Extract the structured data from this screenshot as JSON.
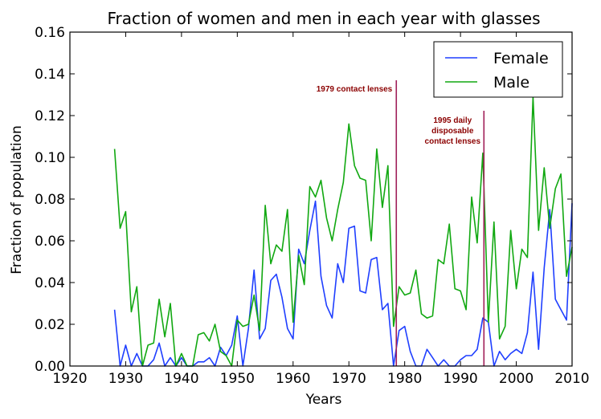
{
  "chart_data": {
    "type": "line",
    "title": "Fraction of women and men in each year with glasses",
    "xlabel": "Years",
    "ylabel": "Fraction of population",
    "xlim": [
      1920,
      2010
    ],
    "ylim": [
      0,
      0.16
    ],
    "x_ticks": [
      "1920",
      "1930",
      "1940",
      "1950",
      "1960",
      "1970",
      "1980",
      "1990",
      "2000",
      "2010"
    ],
    "y_ticks": [
      "0.00",
      "0.02",
      "0.04",
      "0.06",
      "0.08",
      "0.10",
      "0.12",
      "0.14",
      "0.16"
    ],
    "legend": {
      "placement": "top-right",
      "entries": [
        "Female",
        "Male"
      ]
    },
    "series": [
      {
        "name": "Female",
        "color": "#1f3fff",
        "x": [
          1928,
          1929,
          1930,
          1931,
          1932,
          1933,
          1934,
          1935,
          1936,
          1937,
          1938,
          1939,
          1940,
          1941,
          1942,
          1943,
          1944,
          1945,
          1946,
          1947,
          1948,
          1949,
          1950,
          1951,
          1952,
          1953,
          1954,
          1955,
          1956,
          1957,
          1958,
          1959,
          1960,
          1961,
          1962,
          1963,
          1964,
          1965,
          1966,
          1967,
          1968,
          1969,
          1970,
          1971,
          1972,
          1973,
          1974,
          1975,
          1976,
          1977,
          1978,
          1979,
          1980,
          1981,
          1982,
          1983,
          1984,
          1985,
          1986,
          1987,
          1988,
          1989,
          1990,
          1991,
          1992,
          1993,
          1994,
          1995,
          1996,
          1997,
          1998,
          1999,
          2000,
          2001,
          2002,
          2003,
          2004,
          2005,
          2006,
          2007,
          2008,
          2009,
          2010
        ],
        "values": [
          0.027,
          0.0,
          0.01,
          0.0,
          0.006,
          0.0,
          0.0,
          0.003,
          0.011,
          0.0,
          0.004,
          0.0,
          0.004,
          0.0,
          0.0,
          0.002,
          0.002,
          0.004,
          0.0,
          0.009,
          0.005,
          0.01,
          0.024,
          0.0,
          0.018,
          0.046,
          0.013,
          0.018,
          0.041,
          0.044,
          0.033,
          0.018,
          0.013,
          0.056,
          0.049,
          0.065,
          0.079,
          0.043,
          0.029,
          0.023,
          0.049,
          0.04,
          0.066,
          0.067,
          0.036,
          0.035,
          0.051,
          0.052,
          0.027,
          0.03,
          0.0,
          0.017,
          0.019,
          0.007,
          0.0,
          0.0,
          0.008,
          0.004,
          0.0,
          0.003,
          0.0,
          0.0,
          0.003,
          0.005,
          0.005,
          0.008,
          0.023,
          0.021,
          0.0,
          0.007,
          0.003,
          0.006,
          0.008,
          0.006,
          0.016,
          0.045,
          0.008,
          0.047,
          0.075,
          0.032,
          0.027,
          0.022,
          0.078
        ]
      },
      {
        "name": "Male",
        "color": "#11a811",
        "x": [
          1928,
          1929,
          1930,
          1931,
          1932,
          1933,
          1934,
          1935,
          1936,
          1937,
          1938,
          1939,
          1940,
          1941,
          1942,
          1943,
          1944,
          1945,
          1946,
          1947,
          1948,
          1949,
          1950,
          1951,
          1952,
          1953,
          1954,
          1955,
          1956,
          1957,
          1958,
          1959,
          1960,
          1961,
          1962,
          1963,
          1964,
          1965,
          1966,
          1967,
          1968,
          1969,
          1970,
          1971,
          1972,
          1973,
          1974,
          1975,
          1976,
          1977,
          1978,
          1979,
          1980,
          1981,
          1982,
          1983,
          1984,
          1985,
          1986,
          1987,
          1988,
          1989,
          1990,
          1991,
          1992,
          1993,
          1994,
          1995,
          1996,
          1997,
          1998,
          1999,
          2000,
          2001,
          2002,
          2003,
          2004,
          2005,
          2006,
          2007,
          2008,
          2009,
          2010
        ],
        "values": [
          0.104,
          0.066,
          0.074,
          0.026,
          0.038,
          0.0,
          0.01,
          0.011,
          0.032,
          0.014,
          0.03,
          0.0,
          0.006,
          0.0,
          0.0,
          0.015,
          0.016,
          0.012,
          0.02,
          0.007,
          0.005,
          0.0,
          0.022,
          0.019,
          0.02,
          0.034,
          0.017,
          0.077,
          0.049,
          0.058,
          0.055,
          0.075,
          0.021,
          0.053,
          0.039,
          0.086,
          0.081,
          0.089,
          0.071,
          0.06,
          0.075,
          0.088,
          0.116,
          0.096,
          0.09,
          0.089,
          0.06,
          0.104,
          0.076,
          0.096,
          0.019,
          0.038,
          0.034,
          0.035,
          0.046,
          0.025,
          0.023,
          0.024,
          0.051,
          0.049,
          0.068,
          0.037,
          0.036,
          0.027,
          0.081,
          0.059,
          0.102,
          0.021,
          0.069,
          0.013,
          0.019,
          0.065,
          0.037,
          0.056,
          0.052,
          0.129,
          0.065,
          0.095,
          0.066,
          0.085,
          0.092,
          0.043,
          0.057
        ]
      }
    ],
    "annotations": [
      {
        "x": 1978.5,
        "color": "#a0205a",
        "lines": [
          "1979 contact lenses"
        ]
      },
      {
        "x": 1994.2,
        "color": "#a0205a",
        "lines": [
          "1995 daily",
          "disposable",
          "contact lenses"
        ]
      }
    ]
  }
}
